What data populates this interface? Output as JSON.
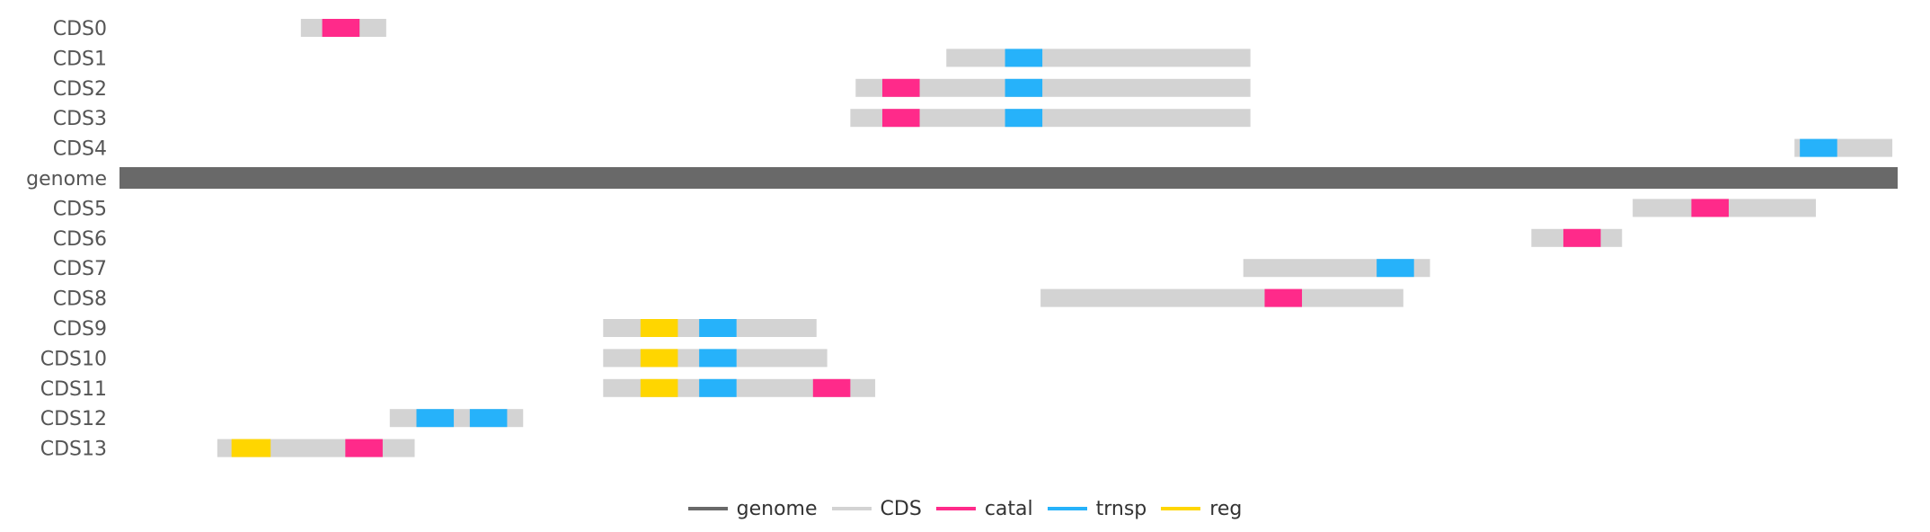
{
  "chart_data": {
    "type": "gene-track",
    "genome_length": 100,
    "x_range": [
      0,
      100
    ],
    "colors": {
      "genome": "#696969",
      "CDS": "#d3d3d3",
      "catal": "#ff2a8a",
      "trnsp": "#26b2fa",
      "reg": "#ffd600"
    },
    "rows": [
      {
        "label": "CDS0",
        "type": "CDS",
        "start": 10.2,
        "end": 15.0,
        "domains": [
          {
            "type": "catal",
            "start": 11.4,
            "end": 13.5
          }
        ]
      },
      {
        "label": "CDS1",
        "type": "CDS",
        "start": 46.5,
        "end": 63.6,
        "domains": [
          {
            "type": "trnsp",
            "start": 49.8,
            "end": 51.9
          }
        ]
      },
      {
        "label": "CDS2",
        "type": "CDS",
        "start": 41.4,
        "end": 63.6,
        "domains": [
          {
            "type": "catal",
            "start": 42.9,
            "end": 45.0
          },
          {
            "type": "trnsp",
            "start": 49.8,
            "end": 51.9
          }
        ]
      },
      {
        "label": "CDS3",
        "type": "CDS",
        "start": 41.1,
        "end": 63.6,
        "domains": [
          {
            "type": "catal",
            "start": 42.9,
            "end": 45.0
          },
          {
            "type": "trnsp",
            "start": 49.8,
            "end": 51.9
          }
        ]
      },
      {
        "label": "CDS4",
        "type": "CDS",
        "start": 94.2,
        "end": 99.7,
        "domains": [
          {
            "type": "trnsp",
            "start": 94.5,
            "end": 96.6
          }
        ]
      },
      {
        "label": "genome",
        "type": "genome",
        "start": 0,
        "end": 100,
        "domains": []
      },
      {
        "label": "CDS5",
        "type": "CDS",
        "start": 85.1,
        "end": 95.4,
        "domains": [
          {
            "type": "catal",
            "start": 88.4,
            "end": 90.5
          }
        ]
      },
      {
        "label": "CDS6",
        "type": "CDS",
        "start": 79.4,
        "end": 84.5,
        "domains": [
          {
            "type": "catal",
            "start": 81.2,
            "end": 83.3
          }
        ]
      },
      {
        "label": "CDS7",
        "type": "CDS",
        "start": 63.2,
        "end": 73.7,
        "domains": [
          {
            "type": "trnsp",
            "start": 70.7,
            "end": 72.8
          }
        ]
      },
      {
        "label": "CDS8",
        "type": "CDS",
        "start": 51.8,
        "end": 72.2,
        "domains": [
          {
            "type": "catal",
            "start": 64.4,
            "end": 66.5
          }
        ]
      },
      {
        "label": "CDS9",
        "type": "CDS",
        "start": 27.2,
        "end": 39.2,
        "domains": [
          {
            "type": "reg",
            "start": 29.3,
            "end": 31.4
          },
          {
            "type": "trnsp",
            "start": 32.6,
            "end": 34.7
          }
        ]
      },
      {
        "label": "CDS10",
        "type": "CDS",
        "start": 27.2,
        "end": 39.8,
        "domains": [
          {
            "type": "reg",
            "start": 29.3,
            "end": 31.4
          },
          {
            "type": "trnsp",
            "start": 32.6,
            "end": 34.7
          }
        ]
      },
      {
        "label": "CDS11",
        "type": "CDS",
        "start": 27.2,
        "end": 42.5,
        "domains": [
          {
            "type": "reg",
            "start": 29.3,
            "end": 31.4
          },
          {
            "type": "trnsp",
            "start": 32.6,
            "end": 34.7
          },
          {
            "type": "catal",
            "start": 39.0,
            "end": 41.1
          }
        ]
      },
      {
        "label": "CDS12",
        "type": "CDS",
        "start": 15.2,
        "end": 22.7,
        "domains": [
          {
            "type": "trnsp",
            "start": 16.7,
            "end": 18.8
          },
          {
            "type": "trnsp",
            "start": 19.7,
            "end": 21.8
          }
        ]
      },
      {
        "label": "CDS13",
        "type": "CDS",
        "start": 5.5,
        "end": 16.6,
        "domains": [
          {
            "type": "reg",
            "start": 6.3,
            "end": 8.5
          },
          {
            "type": "catal",
            "start": 12.7,
            "end": 14.8
          }
        ]
      }
    ],
    "legend": [
      {
        "label": "genome",
        "color": "#696969"
      },
      {
        "label": "CDS",
        "color": "#d3d3d3"
      },
      {
        "label": "catal",
        "color": "#ff2a8a"
      },
      {
        "label": "trnsp",
        "color": "#26b2fa"
      },
      {
        "label": "reg",
        "color": "#ffd600"
      }
    ],
    "legend_position": "bottom-center",
    "grid": false
  }
}
